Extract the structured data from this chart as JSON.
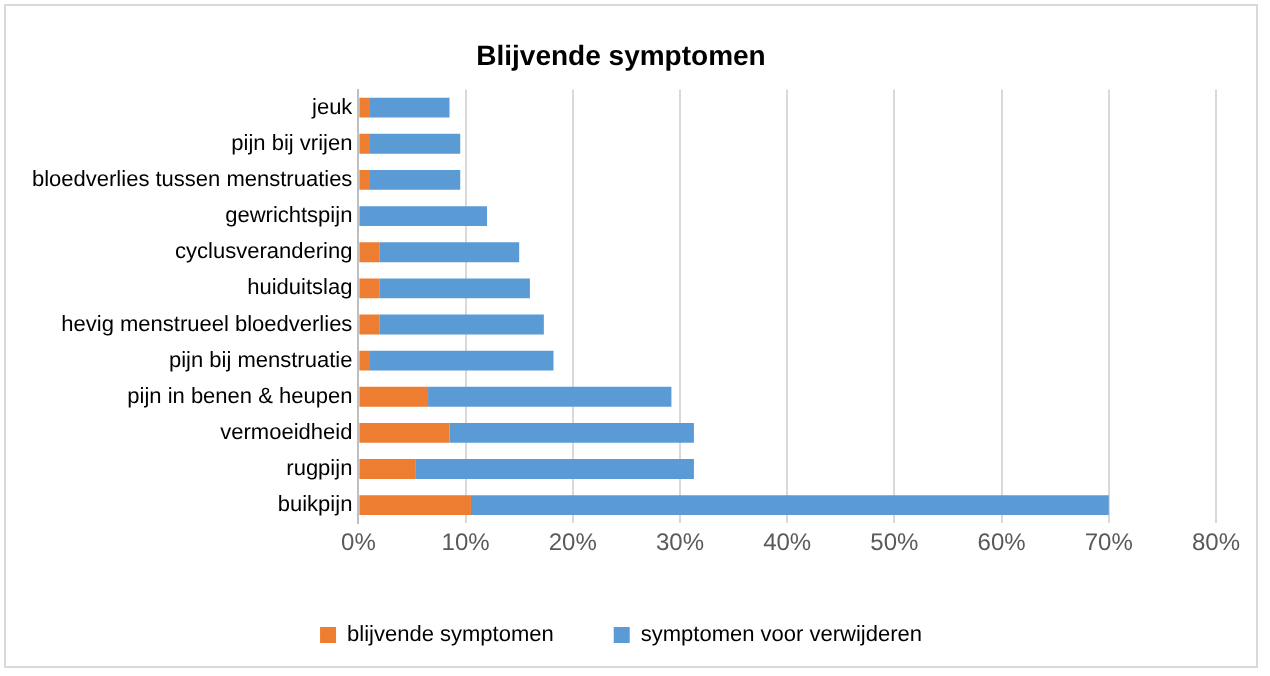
{
  "chart_data": {
    "type": "bar",
    "title": "Blijvende symptomen",
    "orientation": "horizontal",
    "stacked": true,
    "categories": [
      "jeuk",
      "pijn bij vrijen",
      "bloedverlies tussen menstruaties",
      "gewrichtspijn",
      "cyclusverandering",
      "huiduitslag",
      "hevig menstrueel bloedverlies",
      "pijn bij menstruatie",
      "pijn in benen & heupen",
      "vermoeidheid",
      "rugpijn",
      "buikpijn"
    ],
    "series": [
      {
        "name": "blijvende symptomen",
        "color": "#ed7d31",
        "values": [
          1,
          1,
          1,
          0,
          2,
          2,
          2,
          1,
          6.5,
          8.5,
          5.3,
          10.5
        ]
      },
      {
        "name": "symptomen voor verwijderen",
        "color": "#5b9bd5",
        "values": [
          7.5,
          8.5,
          8.5,
          12,
          13,
          14,
          15.3,
          17.2,
          22.7,
          22.8,
          26,
          59.5
        ]
      }
    ],
    "xlim": [
      0,
      80
    ],
    "xticks": [
      {
        "value": 0,
        "label": "0%"
      },
      {
        "value": 10,
        "label": "10%"
      },
      {
        "value": 20,
        "label": "20%"
      },
      {
        "value": 30,
        "label": "30%"
      },
      {
        "value": 40,
        "label": "40%"
      },
      {
        "value": 50,
        "label": "50%"
      },
      {
        "value": 60,
        "label": "60%"
      },
      {
        "value": 70,
        "label": "70%"
      },
      {
        "value": 80,
        "label": "80%"
      }
    ],
    "grid": "x",
    "legend": "bottom"
  }
}
